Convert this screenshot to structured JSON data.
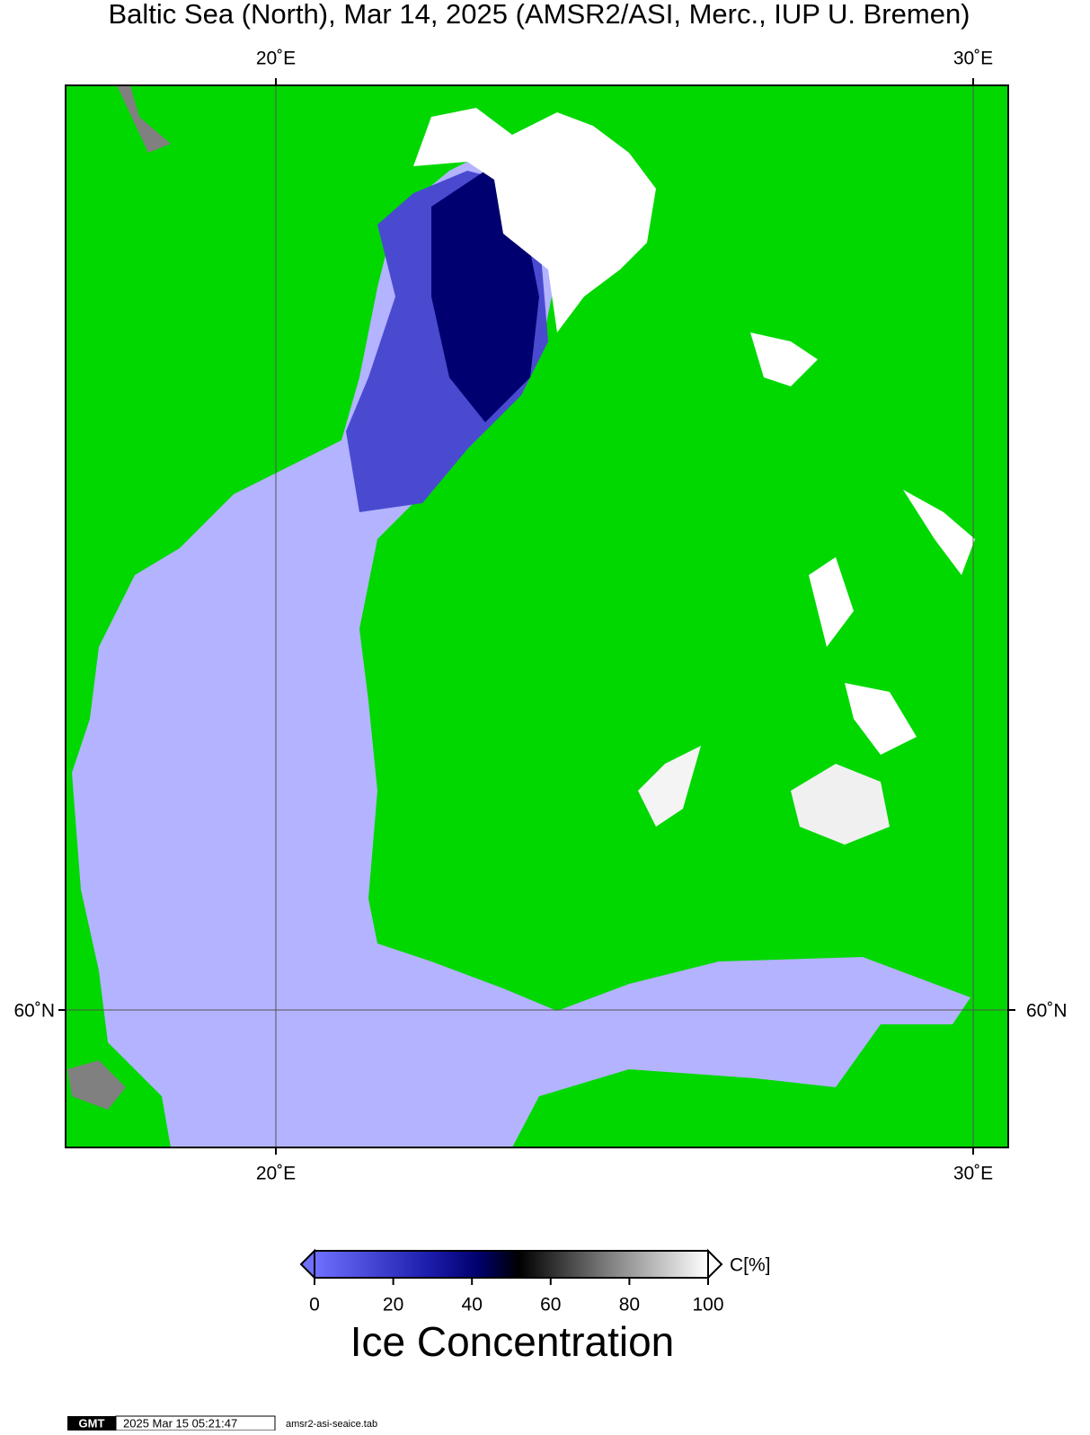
{
  "header": {
    "title": "Baltic Sea (North), Mar 14, 2025 (AMSR2/ASI, Merc., IUP U. Bremen)"
  },
  "map": {
    "top_labels": [
      "20˚E",
      "30˚E"
    ],
    "bottom_labels": [
      "20˚E",
      "30˚E"
    ],
    "left_labels": [
      "60˚N"
    ],
    "right_labels": [
      "60˚N"
    ]
  },
  "colorbar": {
    "ticks": [
      0,
      20,
      40,
      60,
      80,
      100
    ],
    "unit": "C[%]",
    "title": "Ice Concentration"
  },
  "footer": {
    "logo": "GMT",
    "timestamp": "2025 Mar 15 05:21:47",
    "file": "amsr2-asi-seaice.tab"
  }
}
